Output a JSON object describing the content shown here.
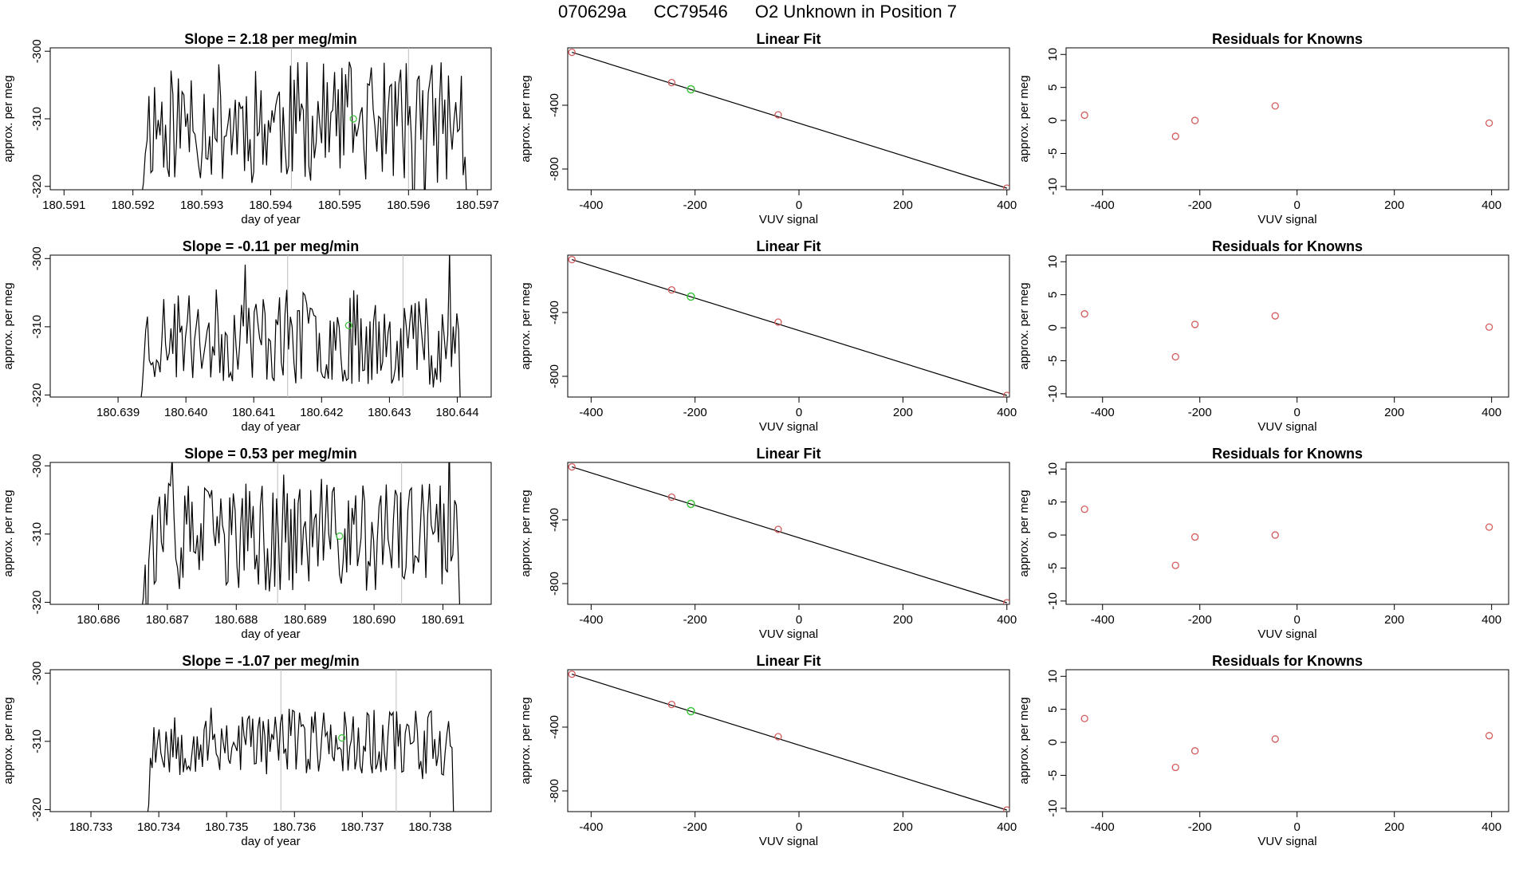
{
  "header": {
    "run_id": "070629a",
    "tank_id": "CC79546",
    "description": "O2 Unknown in Position  7"
  },
  "colors": {
    "trace": "#000000",
    "points": "#d45b5b",
    "unknown": "#3dc43d",
    "vline": "#bdbdbd"
  },
  "chart_data": [
    {
      "type": "line",
      "panel": "time-series",
      "row": 1,
      "title": "Slope =  2.18  per meg/min",
      "xlabel": "day of year",
      "ylabel": "approx. per meg",
      "xlim": [
        180.5908,
        180.5972
      ],
      "ylim": [
        -320.5,
        -299.5
      ],
      "xticks": [
        180.591,
        180.592,
        180.593,
        180.594,
        180.595,
        180.596,
        180.597
      ],
      "xtick_labels": [
        "180.591",
        "180.592",
        "180.593",
        "180.594",
        "180.595",
        "180.596",
        "180.597"
      ],
      "yticks": [
        -300,
        -310,
        -320
      ],
      "ytick_labels": [
        "-300",
        "-310",
        "-320"
      ],
      "x_start": 180.5921,
      "x_end": 180.5969,
      "seed": 11,
      "center": -310.5,
      "amp": 9,
      "vlines": [
        180.5943,
        180.596
      ],
      "unknown_point": {
        "x": 180.5952,
        "y": -310.0
      }
    },
    {
      "type": "scatter",
      "panel": "linear-fit",
      "row": 1,
      "title": "Linear Fit",
      "xlabel": "VUV signal",
      "ylabel": "approx. per meg",
      "xlim": [
        -445,
        405
      ],
      "ylim": [
        -930,
        -40
      ],
      "xticks": [
        -400,
        -200,
        0,
        200,
        400
      ],
      "xtick_labels": [
        "-400",
        "-200",
        "0",
        "200",
        "400"
      ],
      "yticks": [
        -400,
        -800
      ],
      "ytick_labels": [
        "-400",
        "-800"
      ],
      "line": {
        "x1": -437,
        "y1": -68,
        "x2": 400,
        "y2": -920
      },
      "points": [
        {
          "x": -437,
          "y": -68
        },
        {
          "x": -245,
          "y": -258
        },
        {
          "x": -40,
          "y": -460
        },
        {
          "x": 400,
          "y": -920
        }
      ],
      "unknown_point": {
        "x": -208,
        "y": -300
      }
    },
    {
      "type": "scatter",
      "panel": "residuals",
      "row": 1,
      "title": "Residuals for Knowns",
      "xlabel": "VUV signal",
      "ylabel": "approx. per meg",
      "xlim": [
        -475,
        435
      ],
      "ylim": [
        -10.5,
        11
      ],
      "xticks": [
        -400,
        -200,
        0,
        200,
        400
      ],
      "xtick_labels": [
        "-400",
        "-200",
        "0",
        "200",
        "400"
      ],
      "yticks": [
        10,
        5,
        0,
        -5,
        -10
      ],
      "ytick_labels": [
        "10",
        "5",
        "0",
        "-5",
        "-10"
      ],
      "points": [
        {
          "x": -437,
          "y": 0.8
        },
        {
          "x": -250,
          "y": -2.4
        },
        {
          "x": -210,
          "y": 0.0
        },
        {
          "x": -45,
          "y": 2.2
        },
        {
          "x": 395,
          "y": -0.4
        }
      ]
    },
    {
      "type": "line",
      "panel": "time-series",
      "row": 2,
      "title": "Slope =  -0.11  per meg/min",
      "xlabel": "day of year",
      "ylabel": "approx. per meg",
      "xlim": [
        180.638,
        180.6445
      ],
      "ylim": [
        -320.3,
        -299.5
      ],
      "xticks": [
        180.639,
        180.64,
        180.641,
        180.642,
        180.643,
        180.644
      ],
      "xtick_labels": [
        "180.639",
        "180.640",
        "180.641",
        "180.642",
        "180.643",
        "180.644"
      ],
      "yticks": [
        -300,
        -310,
        -320
      ],
      "ytick_labels": [
        "-300",
        "-310",
        "-320"
      ],
      "x_start": 180.6393,
      "x_end": 180.6441,
      "seed": 23,
      "center": -311.5,
      "amp": 7,
      "vlines": [
        180.6415,
        180.6432
      ],
      "unknown_point": {
        "x": 180.6424,
        "y": -309.8
      }
    },
    {
      "type": "scatter",
      "panel": "linear-fit",
      "row": 2,
      "title": "Linear Fit",
      "xlabel": "VUV signal",
      "ylabel": "approx. per meg",
      "xlim": [
        -445,
        405
      ],
      "ylim": [
        -930,
        -40
      ],
      "xticks": [
        -400,
        -200,
        0,
        200,
        400
      ],
      "xtick_labels": [
        "-400",
        "-200",
        "0",
        "200",
        "400"
      ],
      "yticks": [
        -400,
        -800
      ],
      "ytick_labels": [
        "-400",
        "-800"
      ],
      "line": {
        "x1": -437,
        "y1": -68,
        "x2": 400,
        "y2": -920
      },
      "points": [
        {
          "x": -437,
          "y": -68
        },
        {
          "x": -245,
          "y": -258
        },
        {
          "x": -40,
          "y": -460
        },
        {
          "x": 400,
          "y": -920
        }
      ],
      "unknown_point": {
        "x": -208,
        "y": -300
      }
    },
    {
      "type": "scatter",
      "panel": "residuals",
      "row": 2,
      "title": "Residuals for Knowns",
      "xlabel": "VUV signal",
      "ylabel": "approx. per meg",
      "xlim": [
        -475,
        435
      ],
      "ylim": [
        -10.5,
        11
      ],
      "xticks": [
        -400,
        -200,
        0,
        200,
        400
      ],
      "xtick_labels": [
        "-400",
        "-200",
        "0",
        "200",
        "400"
      ],
      "yticks": [
        10,
        5,
        0,
        -5,
        -10
      ],
      "ytick_labels": [
        "10",
        "5",
        "0",
        "-5",
        "-10"
      ],
      "points": [
        {
          "x": -437,
          "y": 2.1
        },
        {
          "x": -250,
          "y": -4.4
        },
        {
          "x": -210,
          "y": 0.5
        },
        {
          "x": -45,
          "y": 1.8
        },
        {
          "x": 395,
          "y": 0.1
        }
      ]
    },
    {
      "type": "line",
      "panel": "time-series",
      "row": 3,
      "title": "Slope =  0.53  per meg/min",
      "xlabel": "day of year",
      "ylabel": "approx. per meg",
      "xlim": [
        180.6853,
        180.6917
      ],
      "ylim": [
        -320.3,
        -299.5
      ],
      "xticks": [
        180.686,
        180.687,
        180.688,
        180.689,
        180.69,
        180.691
      ],
      "xtick_labels": [
        "180.686",
        "180.687",
        "180.688",
        "180.689",
        "180.690",
        "180.691"
      ],
      "yticks": [
        -300,
        -310,
        -320
      ],
      "ytick_labels": [
        "-300",
        "-310",
        "-320"
      ],
      "x_start": 180.6866,
      "x_end": 180.6913,
      "seed": 37,
      "center": -310.5,
      "amp": 8,
      "vlines": [
        180.6886,
        180.6904
      ],
      "unknown_point": {
        "x": 180.6895,
        "y": -310.3
      }
    },
    {
      "type": "scatter",
      "panel": "linear-fit",
      "row": 3,
      "title": "Linear Fit",
      "xlabel": "VUV signal",
      "ylabel": "approx. per meg",
      "xlim": [
        -445,
        405
      ],
      "ylim": [
        -930,
        -40
      ],
      "xticks": [
        -400,
        -200,
        0,
        200,
        400
      ],
      "xtick_labels": [
        "-400",
        "-200",
        "0",
        "200",
        "400"
      ],
      "yticks": [
        -400,
        -800
      ],
      "ytick_labels": [
        "-400",
        "-800"
      ],
      "line": {
        "x1": -437,
        "y1": -68,
        "x2": 400,
        "y2": -920
      },
      "points": [
        {
          "x": -437,
          "y": -68
        },
        {
          "x": -245,
          "y": -258
        },
        {
          "x": -40,
          "y": -460
        },
        {
          "x": 400,
          "y": -920
        }
      ],
      "unknown_point": {
        "x": -208,
        "y": -300
      }
    },
    {
      "type": "scatter",
      "panel": "residuals",
      "row": 3,
      "title": "Residuals for Knowns",
      "xlabel": "VUV signal",
      "ylabel": "approx. per meg",
      "xlim": [
        -475,
        435
      ],
      "ylim": [
        -10.5,
        11
      ],
      "xticks": [
        -400,
        -200,
        0,
        200,
        400
      ],
      "xtick_labels": [
        "-400",
        "-200",
        "0",
        "200",
        "400"
      ],
      "yticks": [
        10,
        5,
        0,
        -5,
        -10
      ],
      "ytick_labels": [
        "10",
        "5",
        "0",
        "-5",
        "-10"
      ],
      "points": [
        {
          "x": -437,
          "y": 3.9
        },
        {
          "x": -250,
          "y": -4.6
        },
        {
          "x": -210,
          "y": -0.3
        },
        {
          "x": -45,
          "y": 0.0
        },
        {
          "x": 395,
          "y": 1.2
        }
      ]
    },
    {
      "type": "line",
      "panel": "time-series",
      "row": 4,
      "title": "Slope =  -1.07  per meg/min",
      "xlabel": "day of year",
      "ylabel": "approx. per meg",
      "xlim": [
        180.7324,
        180.7389
      ],
      "ylim": [
        -320.3,
        -299.5
      ],
      "xticks": [
        180.733,
        180.734,
        180.735,
        180.736,
        180.737,
        180.738
      ],
      "xtick_labels": [
        "180.733",
        "180.734",
        "180.735",
        "180.736",
        "180.737",
        "180.738"
      ],
      "yticks": [
        -300,
        -310,
        -320
      ],
      "ytick_labels": [
        "-300",
        "-310",
        "-320"
      ],
      "x_start": 180.7338,
      "x_end": 180.7384,
      "seed": 53,
      "center": -310.0,
      "amp": 5,
      "vlines": [
        180.7358,
        180.7375
      ],
      "unknown_point": {
        "x": 180.7367,
        "y": -309.5
      }
    },
    {
      "type": "scatter",
      "panel": "linear-fit",
      "row": 4,
      "title": "Linear Fit",
      "xlabel": "VUV signal",
      "ylabel": "approx. per meg",
      "xlim": [
        -445,
        405
      ],
      "ylim": [
        -930,
        -40
      ],
      "xticks": [
        -400,
        -200,
        0,
        200,
        400
      ],
      "xtick_labels": [
        "-400",
        "-200",
        "0",
        "200",
        "400"
      ],
      "yticks": [
        -400,
        -800
      ],
      "ytick_labels": [
        "-400",
        "-800"
      ],
      "line": {
        "x1": -437,
        "y1": -68,
        "x2": 400,
        "y2": -920
      },
      "points": [
        {
          "x": -437,
          "y": -68
        },
        {
          "x": -245,
          "y": -258
        },
        {
          "x": -40,
          "y": -460
        },
        {
          "x": 400,
          "y": -920
        }
      ],
      "unknown_point": {
        "x": -208,
        "y": -300
      }
    },
    {
      "type": "scatter",
      "panel": "residuals",
      "row": 4,
      "title": "Residuals for Knowns",
      "xlabel": "VUV signal",
      "ylabel": "approx. per meg",
      "xlim": [
        -475,
        435
      ],
      "ylim": [
        -10.5,
        11
      ],
      "xticks": [
        -400,
        -200,
        0,
        200,
        400
      ],
      "xtick_labels": [
        "-400",
        "-200",
        "0",
        "200",
        "400"
      ],
      "yticks": [
        10,
        5,
        0,
        -5,
        -10
      ],
      "ytick_labels": [
        "10",
        "5",
        "0",
        "-5",
        "-10"
      ],
      "points": [
        {
          "x": -437,
          "y": 3.6
        },
        {
          "x": -250,
          "y": -3.8
        },
        {
          "x": -210,
          "y": -1.3
        },
        {
          "x": -45,
          "y": 0.5
        },
        {
          "x": 395,
          "y": 1.0
        }
      ]
    }
  ]
}
